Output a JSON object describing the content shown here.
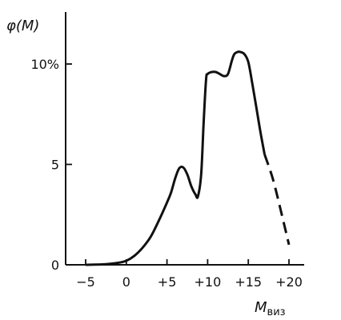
{
  "chart_data": {
    "type": "line",
    "ylabel": "φ(M)",
    "xlabel_main": "M",
    "xlabel_sub": "виз",
    "xlim": [
      -6.5,
      21
    ],
    "ylim": [
      0,
      12.5
    ],
    "x_ticks": [
      -5,
      0,
      5,
      10,
      15,
      20
    ],
    "x_tick_labels": [
      "−5",
      "0",
      "+5",
      "+10",
      "+15",
      "+20"
    ],
    "y_ticks": [
      0,
      5,
      10
    ],
    "y_tick_labels": [
      "0",
      "5",
      "10%"
    ],
    "grid": false,
    "series": [
      {
        "style": "solid",
        "x": [
          -5,
          -3,
          -2,
          -1,
          0,
          1,
          2,
          3,
          4,
          5,
          5.5,
          6,
          6.5,
          7,
          7.5,
          8,
          8.5,
          8.8,
          9.2,
          9.5,
          9.8,
          10,
          10.5,
          11,
          11.5,
          12,
          12.5,
          13,
          13.3,
          13.7,
          14,
          14.5,
          15,
          15.5,
          16,
          16.5,
          17
        ],
        "y": [
          0,
          0.02,
          0.05,
          0.1,
          0.2,
          0.45,
          0.85,
          1.4,
          2.2,
          3.1,
          3.6,
          4.3,
          4.8,
          4.85,
          4.5,
          3.9,
          3.5,
          3.4,
          4.5,
          7.0,
          9.2,
          9.5,
          9.6,
          9.6,
          9.5,
          9.4,
          9.5,
          10.2,
          10.5,
          10.6,
          10.6,
          10.5,
          10.1,
          9.0,
          7.8,
          6.6,
          5.5
        ]
      },
      {
        "style": "dashed",
        "x": [
          17,
          18,
          19,
          20
        ],
        "y": [
          5.5,
          4.3,
          2.7,
          1.0
        ]
      }
    ]
  }
}
